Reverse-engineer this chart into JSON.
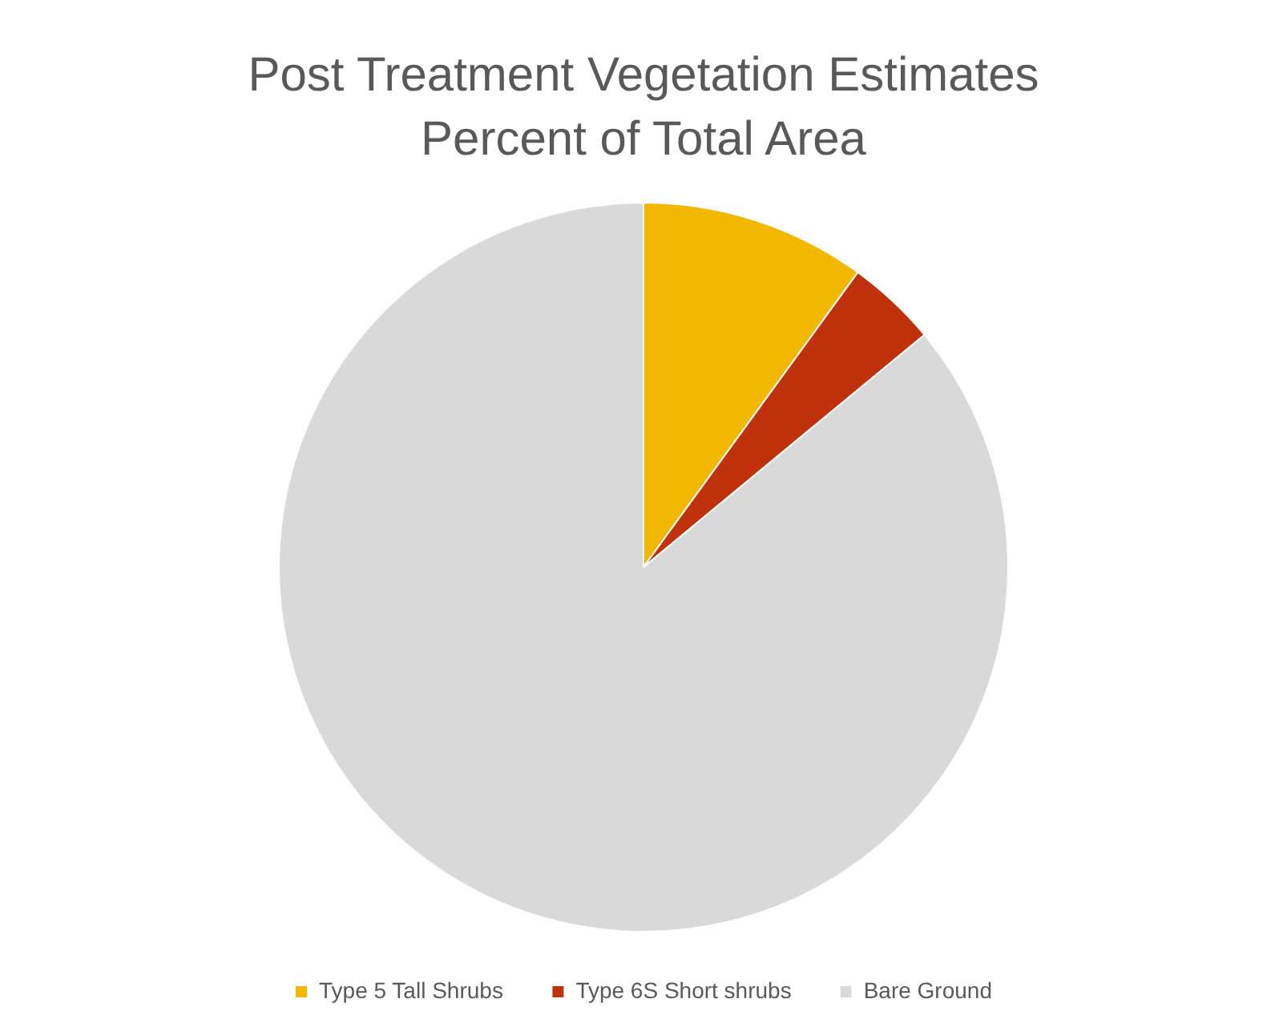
{
  "chart_data": {
    "type": "pie",
    "title": "Post Treatment Vegetation Estimates",
    "subtitle": "Percent of Total Area",
    "categories": [
      "Type 5 Tall Shrubs",
      "Type 6S Short shrubs",
      "Bare Ground"
    ],
    "values": [
      10,
      4,
      86
    ],
    "colors": [
      "#f2b800",
      "#c0320c",
      "#d9d9d9"
    ],
    "legend": "bottom"
  }
}
